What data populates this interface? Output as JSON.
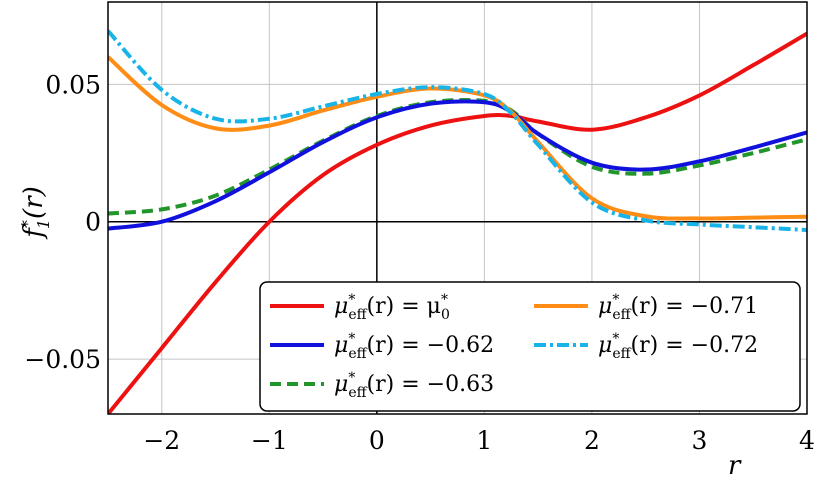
{
  "chart_data": {
    "type": "line",
    "title": "",
    "xlabel": "r",
    "ylabel": "f*₁(r)",
    "xlim": [
      -2.5,
      4
    ],
    "ylim": [
      -0.07,
      0.08
    ],
    "xticks": [
      -2,
      -1,
      0,
      1,
      2,
      3,
      4
    ],
    "xtick_labels": [
      "−2",
      "−1",
      "0",
      "1",
      "2",
      "3",
      "4"
    ],
    "yticks": [
      -0.05,
      0,
      0.05
    ],
    "ytick_labels": [
      "−0.05",
      "0",
      "0.05"
    ],
    "grid": true,
    "legend_position": "bottom-right",
    "x": [
      -2.5,
      -2.0,
      -1.5,
      -1.0,
      -0.5,
      0.0,
      0.5,
      1.0,
      1.25,
      1.5,
      2.0,
      2.5,
      3.0,
      3.5,
      4.0
    ],
    "series": [
      {
        "name": "μ*eff(r) = μ*0",
        "color": "#ee1111",
        "dash": "solid",
        "values": [
          -0.07,
          -0.046,
          -0.022,
          0.0,
          0.017,
          0.028,
          0.035,
          0.0385,
          0.0385,
          0.0365,
          0.0335,
          0.038,
          0.046,
          0.057,
          0.0685
        ]
      },
      {
        "name": "μ*eff(r) = −0.62",
        "color": "#1111dd",
        "dash": "solid",
        "values": [
          -0.0025,
          0.0,
          0.0075,
          0.018,
          0.029,
          0.038,
          0.043,
          0.0435,
          0.04,
          0.032,
          0.0215,
          0.019,
          0.022,
          0.027,
          0.0325
        ]
      },
      {
        "name": "μ*eff(r) = −0.63",
        "color": "#22962a",
        "dash": "dashed",
        "values": [
          0.003,
          0.0045,
          0.0095,
          0.019,
          0.0295,
          0.0385,
          0.0435,
          0.044,
          0.0405,
          0.032,
          0.02,
          0.0175,
          0.0205,
          0.025,
          0.03
        ]
      },
      {
        "name": "μ*eff(r) = −0.71",
        "color": "#ff8c14",
        "dash": "solid",
        "values": [
          0.06,
          0.0425,
          0.034,
          0.035,
          0.0405,
          0.0455,
          0.0485,
          0.046,
          0.04,
          0.029,
          0.0085,
          0.002,
          0.0012,
          0.0015,
          0.0018
        ]
      },
      {
        "name": "μ*eff(r) = −0.72",
        "color": "#18b4e8",
        "dash": "dashdot",
        "values": [
          0.0695,
          0.048,
          0.0375,
          0.0375,
          0.042,
          0.0465,
          0.049,
          0.0465,
          0.0395,
          0.028,
          0.007,
          0.0005,
          -0.001,
          -0.002,
          -0.003
        ]
      }
    ]
  },
  "legend": {
    "columns": [
      [
        {
          "series": 0,
          "lhs": "μ",
          "sup": "*",
          "sub": "eff",
          "rhs": "(r) = μ",
          "rhs_sup": "*",
          "rhs_sub": "0"
        },
        {
          "series": 1,
          "lhs": "μ",
          "sup": "*",
          "sub": "eff",
          "rhs": "(r) = −0.62"
        },
        {
          "series": 2,
          "lhs": "μ",
          "sup": "*",
          "sub": "eff",
          "rhs": "(r) = −0.63"
        }
      ],
      [
        {
          "series": 3,
          "lhs": "μ",
          "sup": "*",
          "sub": "eff",
          "rhs": "(r) = −0.71"
        },
        {
          "series": 4,
          "lhs": "μ",
          "sup": "*",
          "sub": "eff",
          "rhs": "(r) = −0.72"
        }
      ]
    ]
  },
  "ylabel_parts": {
    "base": "f",
    "sup": "*",
    "sub": "1",
    "arg": "(r)"
  }
}
